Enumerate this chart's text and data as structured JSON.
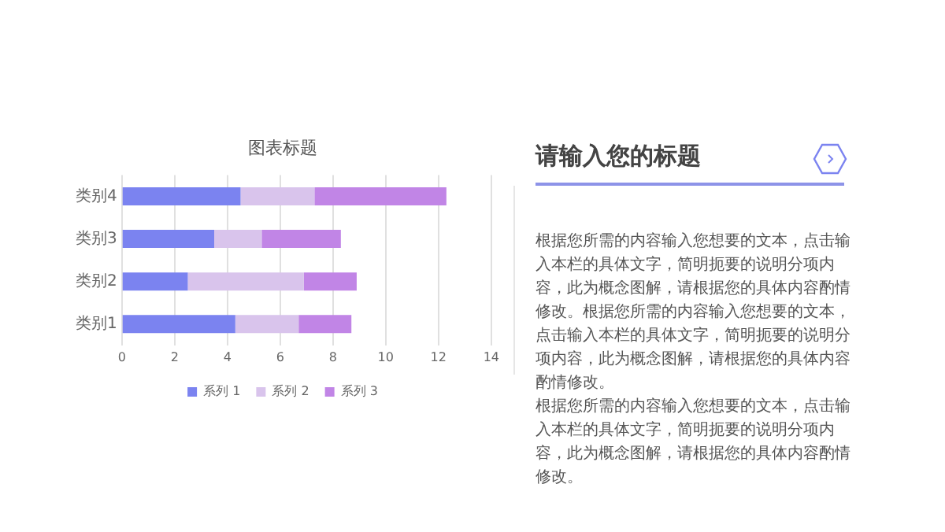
{
  "chart_data": {
    "type": "bar",
    "orientation": "horizontal",
    "stacked": true,
    "title": "图表标题",
    "categories": [
      "类别4",
      "类别3",
      "类别2",
      "类别1"
    ],
    "series": [
      {
        "name": "系列 1",
        "color": "#7b83f0",
        "values": [
          4.5,
          3.5,
          2.5,
          4.3
        ]
      },
      {
        "name": "系列 2",
        "color": "#d9c4ec",
        "values": [
          2.8,
          1.8,
          4.4,
          2.4
        ]
      },
      {
        "name": "系列 3",
        "color": "#c185e6",
        "values": [
          5,
          3,
          2,
          2
        ]
      }
    ],
    "xlim": [
      0,
      14
    ],
    "xticks": [
      0,
      2,
      4,
      6,
      8,
      10,
      12,
      14
    ],
    "grid": "x",
    "legend": "bottom",
    "annotations": [
      "请输入您的标题",
      "根据您所需的内容输入您想要的文本，点击输入本栏的具体文字，简明扼要的说明分项内容，此为概念图解，请根据您的具体内容酌情修改。根据您所需的内容输入您想要的文本，点击输入本栏的具体文字，简明扼要的说明分项内容，此为概念图解，请根据您的具体内容酌情修改。",
      "根据您所需的内容输入您想要的文本，点击输入本栏的具体文字，简明扼要的说明分项内容，此为概念图解，请根据您的具体内容酌情修改。"
    ]
  }
}
